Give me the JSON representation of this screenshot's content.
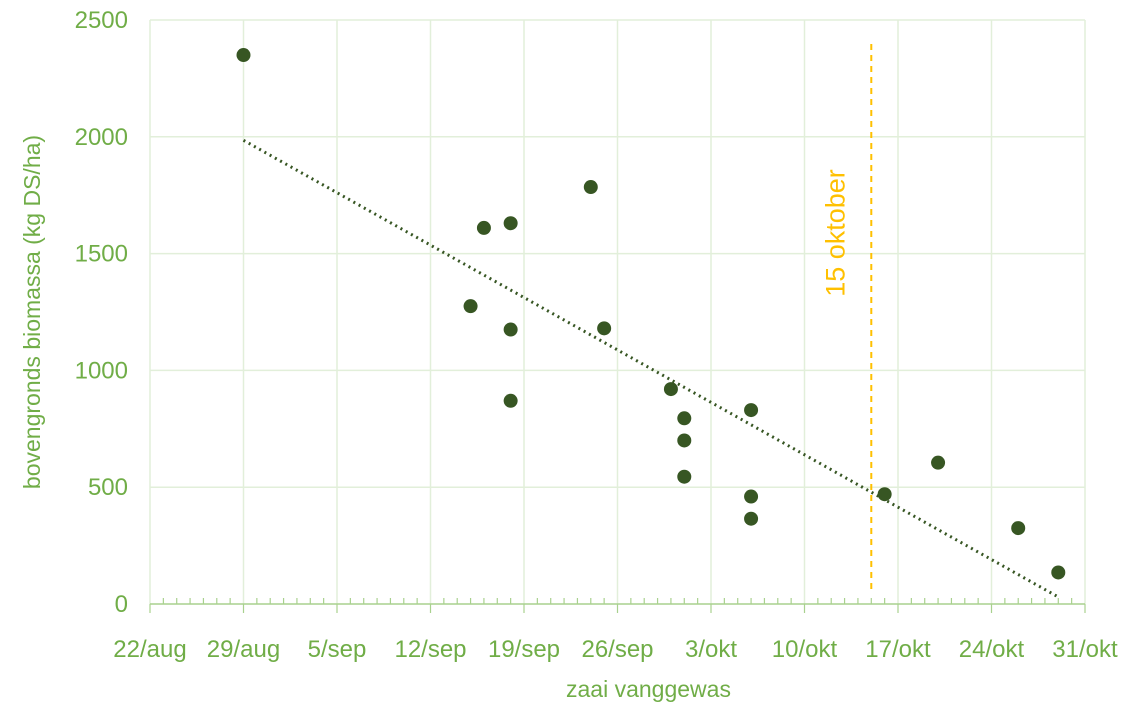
{
  "chart_data": {
    "type": "scatter",
    "xlabel": "zaai vanggewas",
    "ylabel": "bovengronds biomassa (kg DS/ha)",
    "x_tick_labels": [
      "22/aug",
      "29/aug",
      "5/sep",
      "12/sep",
      "19/sep",
      "26/sep",
      "3/okt",
      "10/okt",
      "17/okt",
      "24/okt",
      "31/okt"
    ],
    "y_tick_labels": [
      "0",
      "500",
      "1000",
      "1500",
      "2000",
      "2500"
    ],
    "xlim": [
      "2023-08-22",
      "2023-10-31"
    ],
    "ylim": [
      0,
      2500
    ],
    "y_ticks": [
      0,
      500,
      1000,
      1500,
      2000,
      2500
    ],
    "grid": true,
    "series": [
      {
        "points": [
          {
            "x": "2023-08-29",
            "y": 2350
          },
          {
            "x": "2023-09-15",
            "y": 1275
          },
          {
            "x": "2023-09-16",
            "y": 1610
          },
          {
            "x": "2023-09-18",
            "y": 1630
          },
          {
            "x": "2023-09-18",
            "y": 1175
          },
          {
            "x": "2023-09-18",
            "y": 870
          },
          {
            "x": "2023-09-24",
            "y": 1785
          },
          {
            "x": "2023-09-25",
            "y": 1180
          },
          {
            "x": "2023-09-30",
            "y": 920
          },
          {
            "x": "2023-10-01",
            "y": 795
          },
          {
            "x": "2023-10-01",
            "y": 700
          },
          {
            "x": "2023-10-01",
            "y": 545
          },
          {
            "x": "2023-10-06",
            "y": 830
          },
          {
            "x": "2023-10-06",
            "y": 460
          },
          {
            "x": "2023-10-06",
            "y": 365
          },
          {
            "x": "2023-10-16",
            "y": 470
          },
          {
            "x": "2023-10-20",
            "y": 605
          },
          {
            "x": "2023-10-26",
            "y": 325
          },
          {
            "x": "2023-10-29",
            "y": 135
          }
        ]
      }
    ],
    "trendline": {
      "style": "dotted",
      "start": {
        "x": "2023-08-29",
        "y": 1985
      },
      "end": {
        "x": "2023-10-29",
        "y": 30
      }
    },
    "reference_line": {
      "x": "2023-10-15",
      "label": "15 oktober",
      "style": "dashed"
    }
  },
  "colors": {
    "text": "#70AD47",
    "grid": "#E2EFDA",
    "axis": "#A9D18E",
    "marker": "#375623",
    "trend": "#375623",
    "reference": "#FFC000"
  }
}
